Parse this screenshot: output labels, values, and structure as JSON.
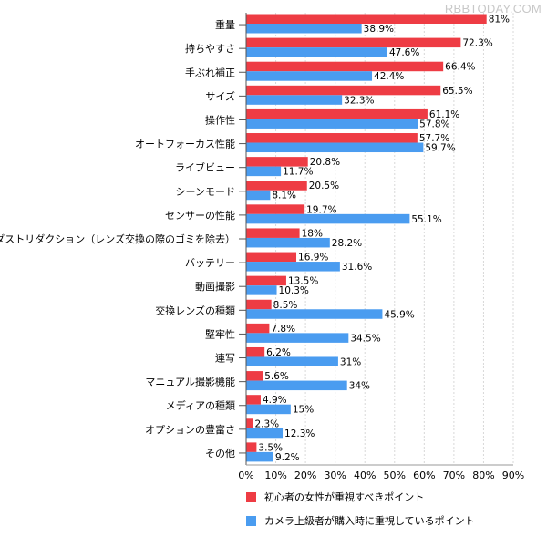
{
  "watermark": "RBBTODAY.COM",
  "colors": {
    "series1": "#ee3c44",
    "series2": "#4a9cf0",
    "grid": "#d8d8d8"
  },
  "chart_data": {
    "type": "bar",
    "orientation": "horizontal",
    "categories": [
      "重量",
      "持ちやすさ",
      "手ぶれ補正",
      "サイズ",
      "操作性",
      "オートフォーカス性能",
      "ライブビュー",
      "シーンモード",
      "センサーの性能",
      "ダストリダクション（レンズ交換の際のゴミを除去）",
      "バッテリー",
      "動画撮影",
      "交換レンズの種類",
      "堅牢性",
      "連写",
      "マニュアル撮影機能",
      "メディアの種類",
      "オプションの豊富さ",
      "その他"
    ],
    "series": [
      {
        "name": "初心者の女性が重視すべきポイント",
        "values": [
          81,
          72.3,
          66.4,
          65.5,
          61.1,
          57.7,
          20.8,
          20.5,
          19.7,
          18,
          16.9,
          13.5,
          8.5,
          7.8,
          6.2,
          5.6,
          4.9,
          2.3,
          3.5
        ]
      },
      {
        "name": "カメラ上級者が購入時に重視しているポイント",
        "values": [
          38.9,
          47.6,
          42.4,
          32.3,
          57.8,
          59.7,
          11.7,
          8.1,
          55.1,
          28.2,
          31.6,
          10.3,
          45.9,
          34.5,
          31,
          34,
          15,
          12.3,
          9.2
        ]
      }
    ],
    "value_labels": [
      [
        "81%",
        "72.3%",
        "66.4%",
        "65.5%",
        "61.1%",
        "57.7%",
        "20.8%",
        "20.5%",
        "19.7%",
        "18%",
        "16.9%",
        "13.5%",
        "8.5%",
        "7.8%",
        "6.2%",
        "5.6%",
        "4.9%",
        "2.3%",
        "3.5%"
      ],
      [
        "38.9%",
        "47.6%",
        "42.4%",
        "32.3%",
        "57.8%",
        "59.7%",
        "11.7%",
        "8.1%",
        "55.1%",
        "28.2%",
        "31.6%",
        "10.3%",
        "45.9%",
        "34.5%",
        "31%",
        "34%",
        "15%",
        "12.3%",
        "9.2%"
      ]
    ],
    "xlim": [
      0,
      90
    ],
    "xticks": [
      0,
      10,
      20,
      30,
      40,
      50,
      60,
      70,
      80,
      90
    ],
    "xtick_labels": [
      "0%",
      "10%",
      "20%",
      "30%",
      "40%",
      "50%",
      "60%",
      "70%",
      "80%",
      "90%"
    ],
    "grid": true,
    "legend_position": "bottom"
  }
}
